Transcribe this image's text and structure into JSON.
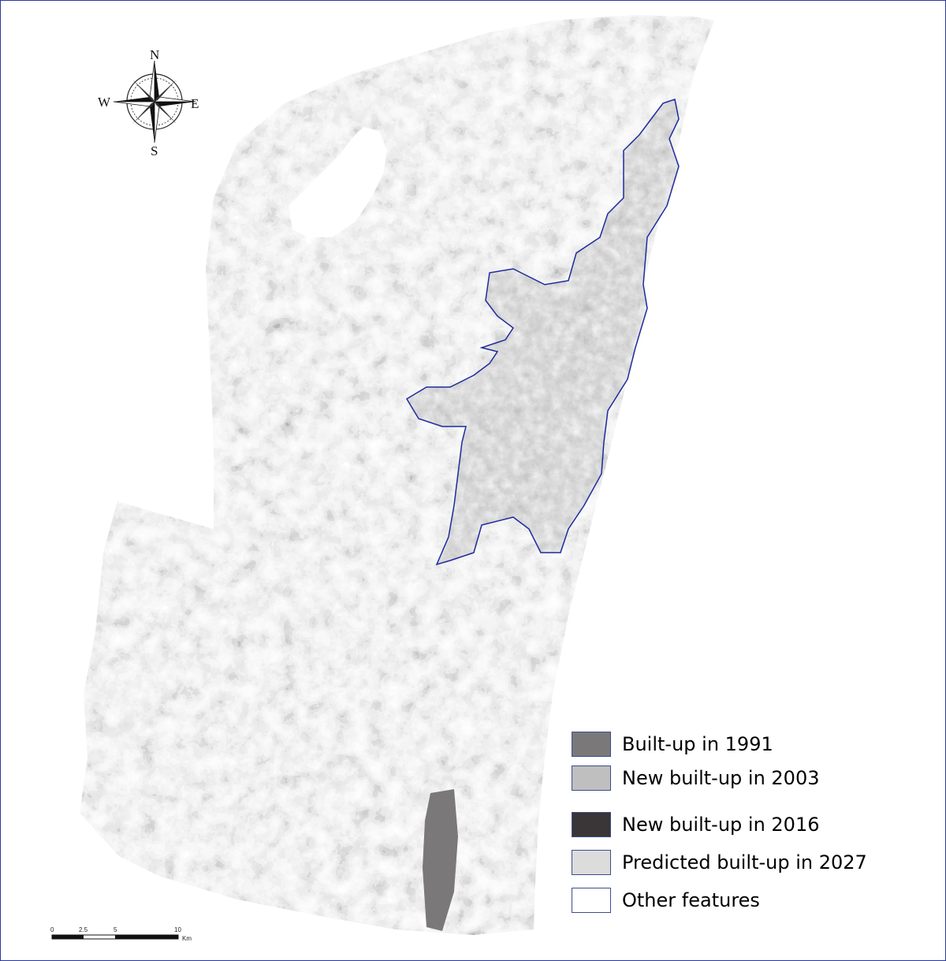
{
  "compass": {
    "north": "N",
    "south": "S",
    "east": "E",
    "west": "W"
  },
  "scale_bar": {
    "ticks": [
      "0",
      "2.5",
      "5",
      "10"
    ],
    "unit": "Km"
  },
  "legend": [
    {
      "label": "Built-up in 1991",
      "color": "#7b7879"
    },
    {
      "label": "New built-up in 2003",
      "color": "#bfbfbf"
    },
    {
      "label": "New built-up in 2016",
      "color": "#3a3536"
    },
    {
      "label": "Predicted built-up in 2027",
      "color": "#dcdcdc"
    },
    {
      "label": "Other features",
      "color": "#ffffff"
    }
  ],
  "colors": {
    "border": "#2a3a9a",
    "boundary": "#1e2a9e",
    "swatch_border": "#3a4f8c"
  }
}
